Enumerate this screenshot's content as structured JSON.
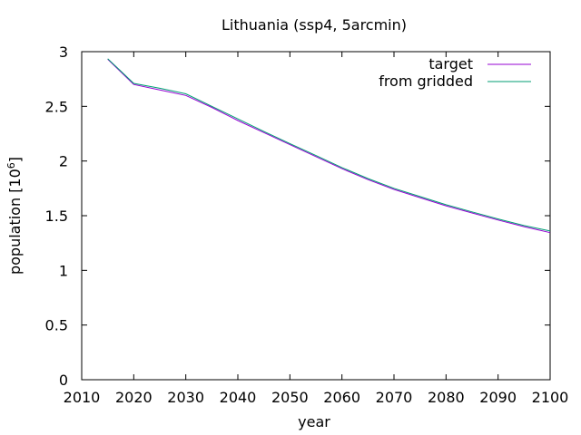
{
  "chart_data": {
    "type": "line",
    "title": "Lithuania (ssp4, 5arcmin)",
    "xlabel": "year",
    "ylabel_main": "population [10",
    "ylabel_exp": "6",
    "ylabel_close": "]",
    "xlim": [
      2010,
      2100
    ],
    "ylim": [
      0,
      3
    ],
    "xticks": [
      2010,
      2020,
      2030,
      2040,
      2050,
      2060,
      2070,
      2080,
      2090,
      2100
    ],
    "yticks": [
      0,
      0.5,
      1,
      1.5,
      2,
      2.5,
      3
    ],
    "ytick_labels": [
      "0",
      "0.5",
      "1",
      "1.5",
      "2",
      "2.5",
      "3"
    ],
    "legend_position": "top-right",
    "grid": false,
    "series": [
      {
        "name": "target",
        "color": "#9400d3",
        "x": [
          2015,
          2020,
          2025,
          2030,
          2035,
          2040,
          2045,
          2050,
          2055,
          2060,
          2065,
          2070,
          2075,
          2080,
          2085,
          2090,
          2095,
          2100
        ],
        "y": [
          2.93,
          2.7,
          2.65,
          2.6,
          2.49,
          2.37,
          2.26,
          2.15,
          2.04,
          1.93,
          1.83,
          1.74,
          1.665,
          1.59,
          1.525,
          1.46,
          1.4,
          1.345
        ]
      },
      {
        "name": "from gridded",
        "color": "#009e73",
        "x": [
          2015,
          2020,
          2025,
          2030,
          2035,
          2040,
          2045,
          2050,
          2055,
          2060,
          2065,
          2070,
          2075,
          2080,
          2085,
          2090,
          2095,
          2100
        ],
        "y": [
          2.935,
          2.71,
          2.665,
          2.615,
          2.5,
          2.385,
          2.27,
          2.16,
          2.05,
          1.94,
          1.84,
          1.75,
          1.675,
          1.6,
          1.535,
          1.47,
          1.41,
          1.36
        ]
      }
    ]
  }
}
